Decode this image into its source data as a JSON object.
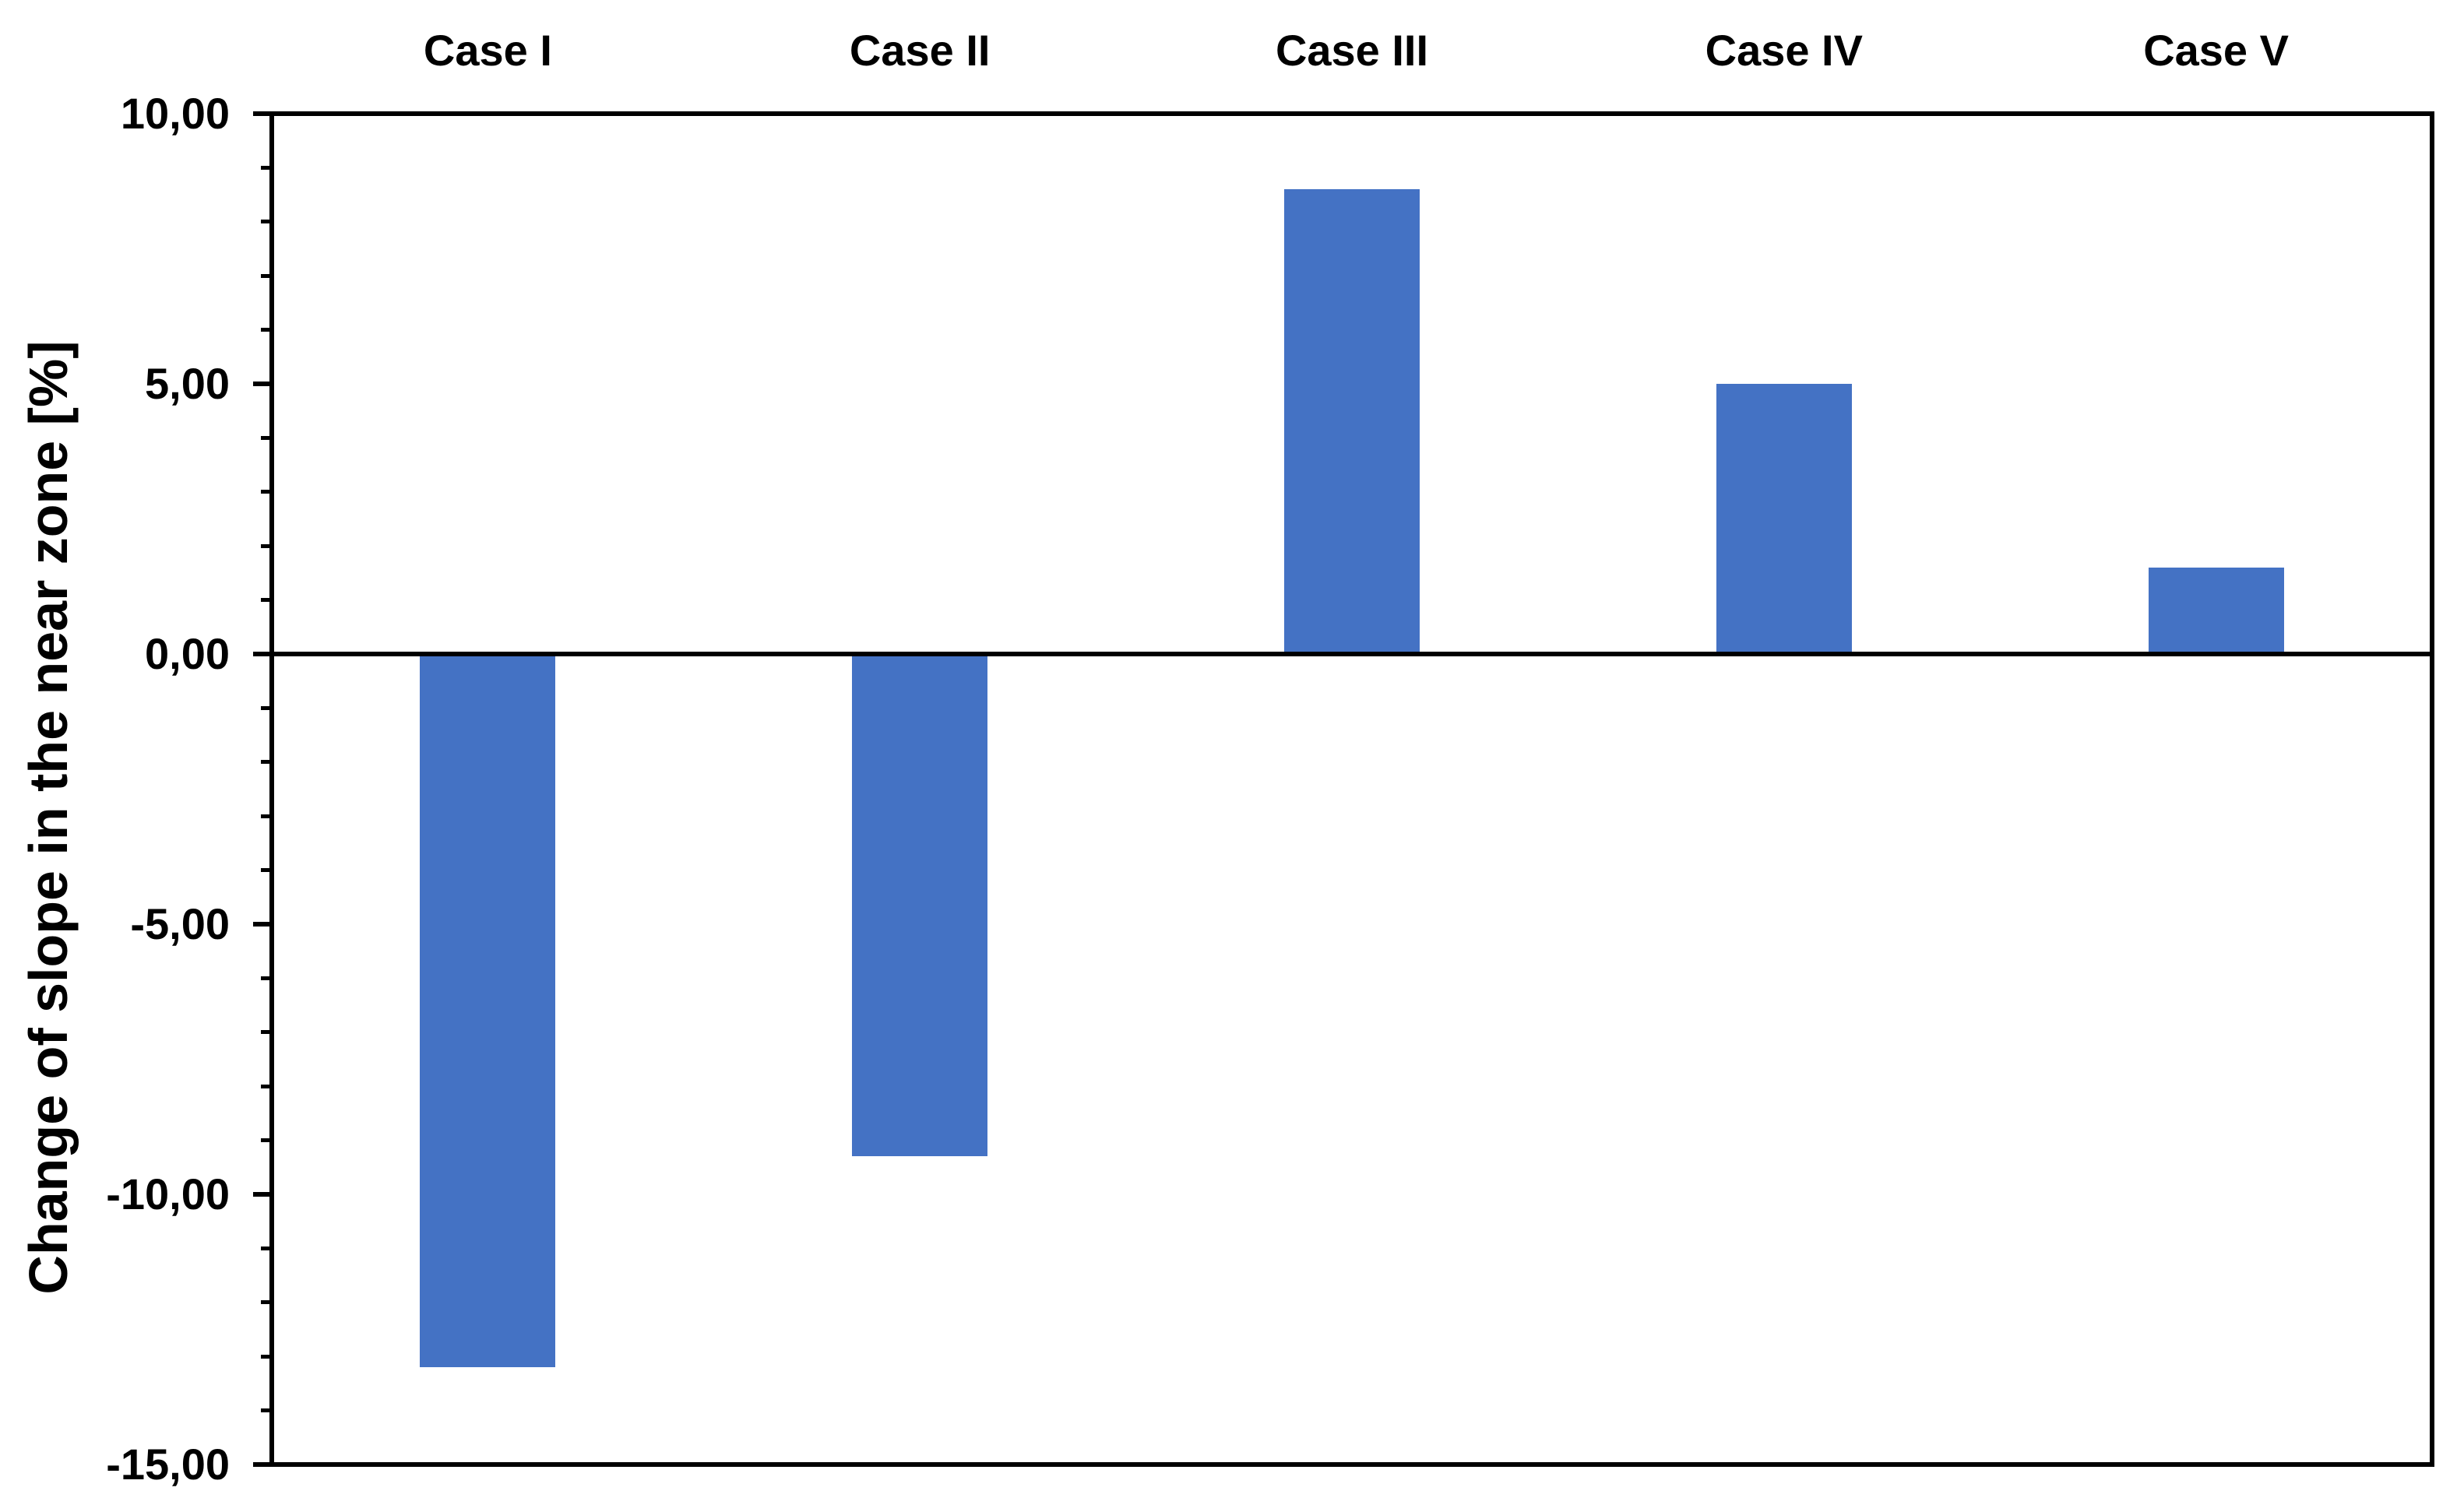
{
  "chart_data": {
    "type": "bar",
    "categories": [
      "Case I",
      "Case II",
      "Case III",
      "Case IV",
      "Case V"
    ],
    "values": [
      -13.2,
      -9.3,
      8.6,
      5.0,
      1.6
    ],
    "title": "",
    "xlabel": "",
    "ylabel": "Change of slope in the near zone [%]",
    "ylim": [
      -15,
      10
    ],
    "y_major_tick_step": 5,
    "y_minor_tick_step": 1,
    "y_tick_labels": [
      "10,00",
      "5,00",
      "0,00",
      "-5,00",
      "-10,00",
      "-15,00"
    ],
    "decimal_separator": ",",
    "grid": false,
    "legend": false,
    "category_label_position": "above-plot",
    "bar_color": "#4472C4",
    "axis_color": "#000000",
    "background_color": "#FFFFFF"
  }
}
